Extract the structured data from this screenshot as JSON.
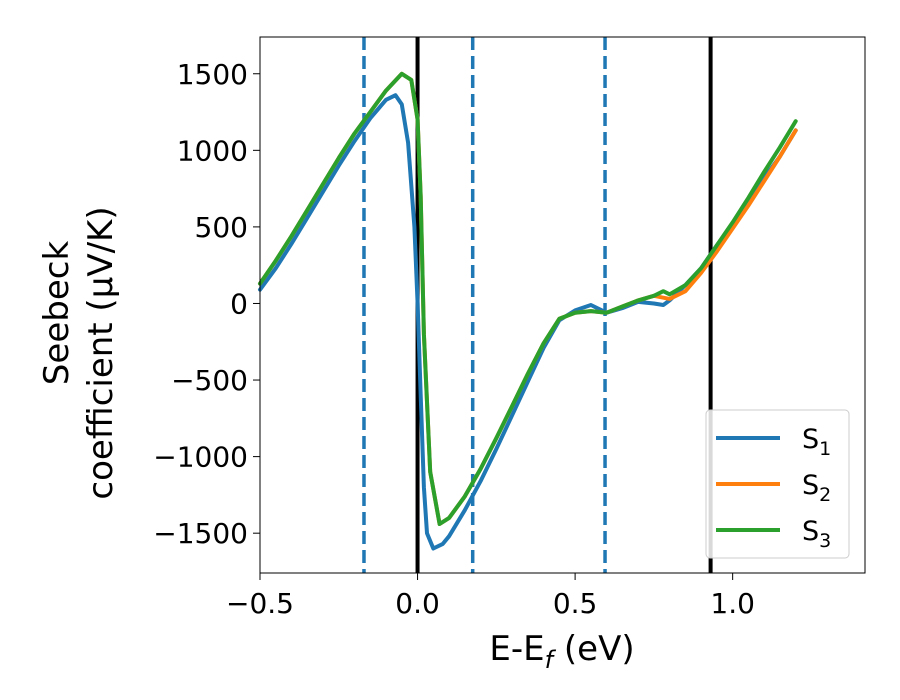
{
  "chart_data": {
    "type": "line",
    "xlabel": "E-E_f (eV)",
    "ylabel_line1": "Seebeck",
    "ylabel_line2": "coefficient  (μV/K)",
    "xlim": [
      -0.5,
      1.42
    ],
    "ylim": [
      -1760,
      1740
    ],
    "x_ticks": [
      -0.5,
      0.0,
      0.5,
      1.0
    ],
    "x_tick_labels": [
      "−0.5",
      "0.0",
      "0.5",
      "1.0"
    ],
    "y_ticks": [
      -1500,
      -1000,
      -500,
      0,
      500,
      1000,
      1500
    ],
    "y_tick_labels": [
      "−1500",
      "−1000",
      "−500",
      "0",
      "500",
      "1000",
      "1500"
    ],
    "grid": false,
    "legend_position": "lower-right",
    "legend": [
      {
        "label": "S",
        "sub": "1",
        "color": "#1f77b4"
      },
      {
        "label": "S",
        "sub": "2",
        "color": "#ff7f0e"
      },
      {
        "label": "S",
        "sub": "3",
        "color": "#2ca02c"
      }
    ],
    "vertical_lines": [
      {
        "x": -0.17,
        "style": "dashed",
        "color": "#1f77b4"
      },
      {
        "x": 0.0,
        "style": "solid",
        "color": "#000000"
      },
      {
        "x": 0.175,
        "style": "dashed",
        "color": "#1f77b4"
      },
      {
        "x": 0.595,
        "style": "dashed",
        "color": "#1f77b4"
      },
      {
        "x": 0.93,
        "style": "solid",
        "color": "#000000"
      }
    ],
    "series": [
      {
        "name": "S1",
        "color": "#1f77b4",
        "x": [
          -0.5,
          -0.45,
          -0.4,
          -0.35,
          -0.3,
          -0.25,
          -0.2,
          -0.15,
          -0.1,
          -0.07,
          -0.05,
          -0.03,
          -0.01,
          0.0,
          0.01,
          0.02,
          0.03,
          0.05,
          0.08,
          0.1,
          0.15,
          0.2,
          0.25,
          0.3,
          0.35,
          0.4,
          0.45,
          0.5,
          0.55,
          0.6,
          0.65,
          0.7,
          0.75,
          0.78,
          0.8,
          0.85,
          0.9,
          0.95,
          1.0,
          1.05,
          1.1,
          1.15,
          1.2
        ],
        "y": [
          90,
          230,
          390,
          560,
          730,
          900,
          1060,
          1210,
          1330,
          1360,
          1300,
          1050,
          500,
          0,
          -600,
          -1200,
          -1500,
          -1600,
          -1570,
          -1520,
          -1350,
          -1160,
          -950,
          -730,
          -510,
          -290,
          -110,
          -45,
          -10,
          -60,
          -30,
          10,
          0,
          -10,
          20,
          120,
          230,
          380,
          520,
          670,
          820,
          960,
          1130
        ]
      },
      {
        "name": "S2",
        "color": "#ff7f0e",
        "x": [
          -0.5,
          -0.45,
          -0.4,
          -0.35,
          -0.3,
          -0.25,
          -0.2,
          -0.15,
          -0.1,
          -0.05,
          -0.02,
          0.0,
          0.01,
          0.02,
          0.04,
          0.07,
          0.1,
          0.15,
          0.2,
          0.25,
          0.3,
          0.35,
          0.4,
          0.45,
          0.5,
          0.55,
          0.6,
          0.65,
          0.7,
          0.75,
          0.8,
          0.85,
          0.9,
          0.95,
          1.0,
          1.05,
          1.1,
          1.15,
          1.2
        ],
        "y": [
          130,
          280,
          440,
          610,
          780,
          950,
          1110,
          1250,
          1390,
          1500,
          1460,
          1200,
          700,
          -200,
          -1100,
          -1440,
          -1400,
          -1260,
          -1080,
          -880,
          -670,
          -460,
          -260,
          -100,
          -60,
          -50,
          -60,
          -20,
          20,
          50,
          30,
          80,
          200,
          340,
          490,
          640,
          800,
          960,
          1130
        ]
      },
      {
        "name": "S3",
        "color": "#2ca02c",
        "x": [
          -0.5,
          -0.45,
          -0.4,
          -0.35,
          -0.3,
          -0.25,
          -0.2,
          -0.15,
          -0.1,
          -0.05,
          -0.02,
          0.0,
          0.01,
          0.02,
          0.04,
          0.07,
          0.1,
          0.15,
          0.2,
          0.25,
          0.3,
          0.35,
          0.4,
          0.45,
          0.5,
          0.55,
          0.6,
          0.65,
          0.7,
          0.75,
          0.78,
          0.8,
          0.85,
          0.9,
          0.95,
          1.0,
          1.05,
          1.1,
          1.15,
          1.2
        ],
        "y": [
          130,
          280,
          440,
          610,
          780,
          950,
          1110,
          1250,
          1390,
          1500,
          1460,
          1200,
          700,
          -200,
          -1100,
          -1440,
          -1400,
          -1260,
          -1080,
          -880,
          -670,
          -460,
          -260,
          -100,
          -60,
          -50,
          -60,
          -20,
          20,
          50,
          80,
          60,
          120,
          230,
          380,
          530,
          690,
          860,
          1020,
          1190
        ]
      }
    ]
  }
}
